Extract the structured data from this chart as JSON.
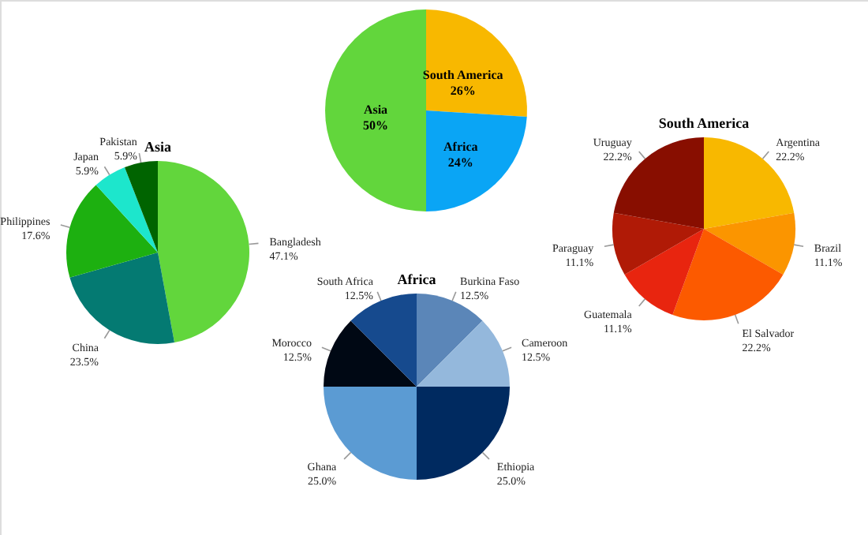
{
  "chart_data": [
    {
      "type": "pie",
      "categories": [
        "South America",
        "Africa",
        "Asia"
      ],
      "values": [
        26,
        24,
        50
      ],
      "colors": [
        "#f8b800",
        "#0aa5f5",
        "#62d63c"
      ],
      "value_labels": [
        "26%",
        "24%",
        "50%"
      ]
    },
    {
      "type": "pie",
      "title": "Asia",
      "categories": [
        "Bangladesh",
        "China",
        "Philippines",
        "Japan",
        "Pakistan"
      ],
      "values": [
        47.1,
        23.5,
        17.6,
        5.9,
        5.9
      ],
      "colors": [
        "#62d63c",
        "#047a72",
        "#1db010",
        "#1de6cc",
        "#006400"
      ],
      "value_labels": [
        "47.1%",
        "23.5%",
        "17.6%",
        "5.9%",
        "5.9%"
      ]
    },
    {
      "type": "pie",
      "title": "South America",
      "categories": [
        "Argentina",
        "Brazil",
        "El Salvador",
        "Guatemala",
        "Paraguay",
        "Uruguay"
      ],
      "values": [
        22.2,
        11.1,
        22.2,
        11.1,
        11.1,
        22.2
      ],
      "colors": [
        "#f8b800",
        "#fb9500",
        "#fc5a00",
        "#e8250f",
        "#b01a06",
        "#880e00"
      ],
      "value_labels": [
        "22.2%",
        "11.1%",
        "22.2%",
        "11.1%",
        "11.1%",
        "22.2%"
      ]
    },
    {
      "type": "pie",
      "title": "Africa",
      "categories": [
        "Burkina Faso",
        "Cameroon",
        "Ethiopia",
        "Ghana",
        "Morocco",
        "South Africa"
      ],
      "values": [
        12.5,
        12.5,
        25.0,
        25.0,
        12.5,
        12.5
      ],
      "colors": [
        "#5b86b8",
        "#94b8dc",
        "#002a60",
        "#5b9bd3",
        "#000814",
        "#164a8e"
      ],
      "value_labels": [
        "12.5%",
        "12.5%",
        "25.0%",
        "25.0%",
        "12.5%",
        "12.5%"
      ]
    }
  ]
}
